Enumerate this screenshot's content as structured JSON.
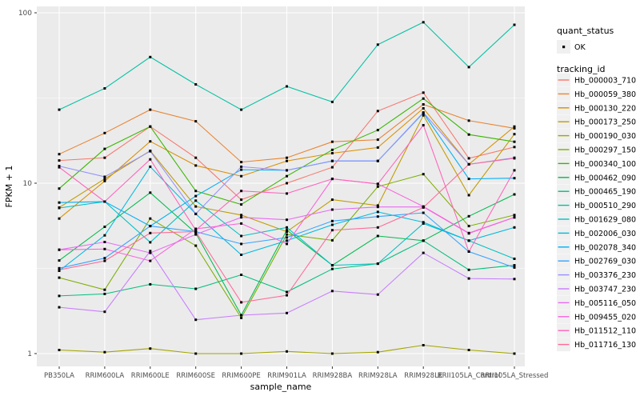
{
  "chart_data": {
    "type": "line",
    "title": "",
    "xlabel": "sample_name",
    "ylabel": "FPKM + 1",
    "y_scale": "log10",
    "y_ticks": [
      "1",
      "10",
      "100"
    ],
    "ylim": [
      0.85,
      110
    ],
    "grid": "on",
    "legend_position": "right",
    "marker": "small black point on every datum (quant_status = OK)",
    "categories": [
      "PB350LA",
      "RRIM600LA",
      "RRIM600LE",
      "RRIM600SE",
      "RRIM600PE",
      "RRIM901LA",
      "RRIM928BA",
      "RRIM928LA",
      "RRIM928LE",
      "RRII105LA_Control",
      "RRII105LA_Stressed"
    ],
    "series": [
      {
        "name": "Hb_000003_710",
        "color": "#F8766D",
        "values": [
          13.6,
          14.1,
          21.5,
          14.1,
          8.0,
          10.0,
          12.4,
          26.5,
          34.0,
          14.0,
          16.3
        ]
      },
      {
        "name": "Hb_000059_380",
        "color": "#EA8331",
        "values": [
          14.8,
          19.7,
          27.0,
          23.1,
          13.3,
          14.1,
          17.5,
          18.0,
          29.0,
          23.3,
          21.0
        ]
      },
      {
        "name": "Hb_000130_220",
        "color": "#D89000",
        "values": [
          6.2,
          10.3,
          17.6,
          12.7,
          11.0,
          13.5,
          15.0,
          16.2,
          27.5,
          12.9,
          21.5
        ]
      },
      {
        "name": "Hb_000173_250",
        "color": "#C09B00",
        "values": [
          7.2,
          10.6,
          15.5,
          7.3,
          6.5,
          5.2,
          8.0,
          7.4,
          25.0,
          8.5,
          19.4
        ]
      },
      {
        "name": "Hb_000190_030",
        "color": "#A3A500",
        "values": [
          1.05,
          1.02,
          1.07,
          1.0,
          1.0,
          1.03,
          1.0,
          1.02,
          1.12,
          1.05,
          1.0
        ]
      },
      {
        "name": "Hb_000297_150",
        "color": "#7CAE00",
        "values": [
          2.79,
          2.37,
          6.2,
          4.3,
          1.62,
          5.0,
          4.62,
          9.55,
          11.3,
          5.6,
          6.5
        ]
      },
      {
        "name": "Hb_000340_100",
        "color": "#39B600",
        "values": [
          9.3,
          15.9,
          21.5,
          9.0,
          7.5,
          11.0,
          15.7,
          20.5,
          31.4,
          19.3,
          17.5
        ]
      },
      {
        "name": "Hb_000462_090",
        "color": "#00BB4E",
        "values": [
          3.52,
          5.55,
          8.8,
          5.1,
          1.68,
          5.3,
          3.3,
          4.9,
          4.6,
          6.4,
          8.6
        ]
      },
      {
        "name": "Hb_000465_190",
        "color": "#00BF7D",
        "values": [
          2.18,
          2.24,
          2.55,
          2.4,
          2.9,
          2.3,
          3.14,
          3.37,
          4.6,
          3.1,
          3.3
        ]
      },
      {
        "name": "Hb_000510_290",
        "color": "#00C1A3",
        "values": [
          27.0,
          36.0,
          55.0,
          38.0,
          27.0,
          37.0,
          30.0,
          65.0,
          88.0,
          48.0,
          85.0
        ]
      },
      {
        "name": "Hb_001629_080",
        "color": "#00BFC4",
        "values": [
          7.15,
          7.8,
          4.5,
          7.9,
          4.9,
          5.5,
          3.3,
          3.37,
          5.8,
          4.6,
          3.6
        ]
      },
      {
        "name": "Hb_002006_030",
        "color": "#00BAE0",
        "values": [
          3.06,
          4.94,
          12.5,
          6.6,
          3.8,
          4.6,
          5.7,
          6.78,
          5.9,
          4.6,
          5.5
        ]
      },
      {
        "name": "Hb_002078_340",
        "color": "#00B0F6",
        "values": [
          7.7,
          7.8,
          5.6,
          8.4,
          12.0,
          11.9,
          13.5,
          13.5,
          25.8,
          10.6,
          10.7
        ]
      },
      {
        "name": "Hb_002769_030",
        "color": "#35A2FF",
        "values": [
          3.17,
          3.63,
          5.6,
          5.2,
          4.4,
          4.8,
          6.0,
          6.37,
          6.7,
          3.97,
          3.2
        ]
      },
      {
        "name": "Hb_003376_230",
        "color": "#9590FF",
        "values": [
          12.6,
          10.9,
          15.4,
          6.6,
          12.5,
          11.9,
          13.5,
          13.5,
          26.0,
          12.9,
          14.1
        ]
      },
      {
        "name": "Hb_003747_230",
        "color": "#C77CFF",
        "values": [
          1.87,
          1.76,
          4.0,
          1.58,
          1.68,
          1.73,
          2.33,
          2.22,
          3.9,
          2.76,
          2.74
        ]
      },
      {
        "name": "Hb_005116_050",
        "color": "#E76BF3",
        "values": [
          4.07,
          4.52,
          3.9,
          5.0,
          6.3,
          6.1,
          7.0,
          7.25,
          7.25,
          5.07,
          6.3
        ]
      },
      {
        "name": "Hb_009455_020",
        "color": "#FA62DB",
        "values": [
          4.07,
          4.11,
          3.5,
          5.4,
          5.8,
          4.4,
          10.6,
          9.9,
          7.3,
          5.1,
          6.3
        ]
      },
      {
        "name": "Hb_011512_110",
        "color": "#FF62BC",
        "values": [
          12.4,
          7.8,
          13.8,
          5.3,
          9.0,
          8.7,
          10.6,
          9.9,
          21.9,
          3.97,
          11.9
        ]
      },
      {
        "name": "Hb_011716_130",
        "color": "#FF6A98",
        "values": [
          3.1,
          3.5,
          5.1,
          5.2,
          2.0,
          2.2,
          5.3,
          5.5,
          7.2,
          12.9,
          14.0
        ]
      }
    ]
  },
  "legend": {
    "quant_status_title": "quant_status",
    "quant_status_items": [
      {
        "label": "OK",
        "symbol": "black-point"
      }
    ],
    "tracking_id_title": "tracking_id"
  },
  "colors": {
    "panel_background": "#EBEBEB",
    "gridline": "#FFFFFF",
    "legend_key_background": "#F0F0F0",
    "tick_label": "#4D4D4D",
    "axis_title": "#000000",
    "point": "#000000"
  }
}
